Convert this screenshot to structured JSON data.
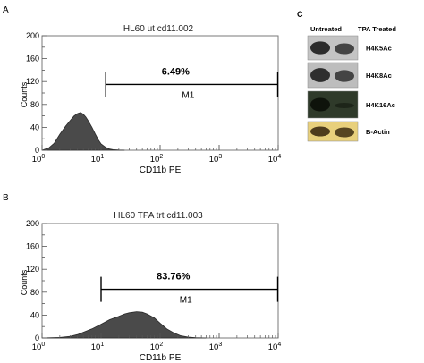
{
  "panels": {
    "a": {
      "label": "A"
    },
    "b": {
      "label": "B"
    },
    "c": {
      "label": "C"
    }
  },
  "chart_data": [
    {
      "type": "area",
      "panel": "A",
      "title": "HL60 ut cd11.002",
      "xlabel": "CD11b PE",
      "ylabel": "Counts",
      "x_scale": "log",
      "xlim": [
        1,
        10000
      ],
      "ylim": [
        0,
        200
      ],
      "x_ticks": [
        {
          "value": 1,
          "base": "10",
          "exp": "0"
        },
        {
          "value": 10,
          "base": "10",
          "exp": "1"
        },
        {
          "value": 100,
          "base": "10",
          "exp": "2"
        },
        {
          "value": 1000,
          "base": "10",
          "exp": "3"
        },
        {
          "value": 10000,
          "base": "10",
          "exp": "4"
        }
      ],
      "y_ticks": [
        0,
        20,
        40,
        60,
        80,
        100,
        120,
        140,
        160,
        180,
        200
      ],
      "y_tick_labels": [
        "0",
        "",
        "40",
        "",
        "80",
        "",
        "120",
        "",
        "160",
        "",
        "200"
      ],
      "x": [
        1,
        1.3,
        1.6,
        2,
        2.5,
        3,
        3.5,
        4,
        4.5,
        5,
        5.5,
        6,
        7,
        8,
        9,
        10,
        12,
        14,
        16,
        20,
        25
      ],
      "y": [
        0,
        4,
        12,
        28,
        42,
        52,
        60,
        64,
        66,
        63,
        58,
        52,
        40,
        28,
        18,
        11,
        5,
        2,
        1,
        0.3,
        0
      ],
      "gate": {
        "label": "M1",
        "percent": "6.49%",
        "x_start": 12,
        "x_end": 10000,
        "y_level": 115
      }
    },
    {
      "type": "area",
      "panel": "B",
      "title": "HL60 TPA trt cd11.003",
      "xlabel": "CD11b PE",
      "ylabel": "Counts",
      "x_scale": "log",
      "xlim": [
        1,
        10000
      ],
      "ylim": [
        0,
        200
      ],
      "x_ticks": [
        {
          "value": 1,
          "base": "10",
          "exp": "0"
        },
        {
          "value": 10,
          "base": "10",
          "exp": "1"
        },
        {
          "value": 100,
          "base": "10",
          "exp": "2"
        },
        {
          "value": 1000,
          "base": "10",
          "exp": "3"
        },
        {
          "value": 10000,
          "base": "10",
          "exp": "4"
        }
      ],
      "y_ticks": [
        0,
        20,
        40,
        60,
        80,
        100,
        120,
        140,
        160,
        180,
        200
      ],
      "y_tick_labels": [
        "0",
        "",
        "40",
        "",
        "80",
        "",
        "120",
        "",
        "160",
        "",
        "200"
      ],
      "x": [
        1,
        2,
        3,
        4,
        5,
        7,
        10,
        14,
        20,
        25,
        30,
        40,
        50,
        60,
        80,
        100,
        130,
        170,
        220,
        300,
        400,
        600
      ],
      "y": [
        0,
        1,
        3,
        6,
        10,
        16,
        24,
        32,
        38,
        42,
        44,
        46,
        45,
        42,
        35,
        26,
        16,
        9,
        4,
        1.5,
        0.5,
        0
      ],
      "gate": {
        "label": "M1",
        "percent": "83.76%",
        "x_start": 10,
        "x_end": 10000,
        "y_level": 85
      }
    }
  ],
  "blot": {
    "column_labels": [
      "Untreated",
      "TPA Treated"
    ],
    "rows": [
      {
        "label": "H4K5Ac",
        "background": "#c4c4c4",
        "band_color": "#1e1e1e",
        "untreated": 0.95,
        "treated": 0.8
      },
      {
        "label": "H4K8Ac",
        "background": "#bdbdbd",
        "band_color": "#262626",
        "untreated": 1.0,
        "treated": 0.85
      },
      {
        "label": "H4K16Ac",
        "background": "#2f3a2a",
        "band_color": "#0a0f08",
        "untreated": 0.9,
        "treated": 0.35
      },
      {
        "label": "B-Actin",
        "background": "#e8d07c",
        "band_color": "#3a2a10",
        "untreated": 0.9,
        "treated": 0.9
      }
    ]
  },
  "colors": {
    "histogram_fill": "#4a4a4a",
    "frame": "#7a7a7a",
    "text": "#111111"
  }
}
